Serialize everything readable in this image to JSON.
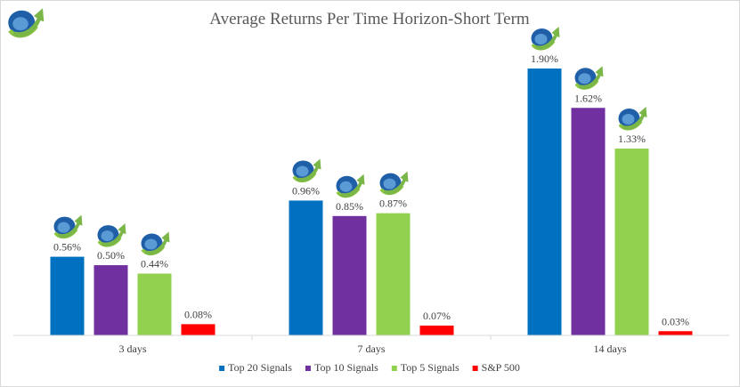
{
  "chart_data": {
    "type": "bar",
    "title": "Average Returns Per Time Horizon-Short Term",
    "xlabel": "",
    "ylabel": "",
    "categories": [
      "3 days",
      "7 days",
      "14 days"
    ],
    "series": [
      {
        "name": "Top 20 Signals",
        "color": "#0070C0",
        "values": [
          0.56,
          0.96,
          1.9
        ],
        "labels": [
          "0.56%",
          "0.96%",
          "1.90%"
        ],
        "logo": true
      },
      {
        "name": "Top 10 Signals",
        "color": "#7030A0",
        "values": [
          0.5,
          0.85,
          1.62
        ],
        "labels": [
          "0.50%",
          "0.85%",
          "1.62%"
        ],
        "logo": true
      },
      {
        "name": "Top 5 Signals",
        "color": "#92D050",
        "values": [
          0.44,
          0.87,
          1.33
        ],
        "labels": [
          "0.44%",
          "0.87%",
          "1.33%"
        ],
        "logo": true
      },
      {
        "name": "S&P 500",
        "color": "#FF0000",
        "values": [
          0.08,
          0.07,
          0.03
        ],
        "labels": [
          "0.08%",
          "0.07%",
          "0.03%"
        ],
        "logo": false
      }
    ],
    "ylim": [
      0,
      1.97
    ],
    "grid": false,
    "legend": "bottom",
    "icon": "company-logo-icon"
  }
}
